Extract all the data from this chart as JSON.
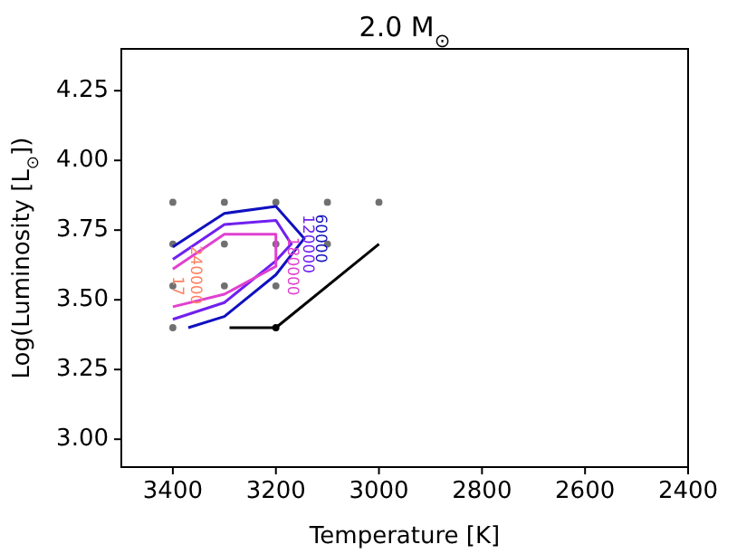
{
  "chart_data": {
    "type": "line",
    "title": "2.0 M$_{⊙}$",
    "xlabel": "Temperature [K]",
    "ylabel": "Log(Luminosity [L$_{⊙}$])",
    "xlim": [
      3500,
      2400
    ],
    "xticks": [
      3400,
      3200,
      3000,
      2800,
      2600,
      2400
    ],
    "ylim": [
      2.9,
      4.4
    ],
    "yticks": [
      {
        "value": 3.0,
        "label": "3.00"
      },
      {
        "value": 3.25,
        "label": "3.25"
      },
      {
        "value": 3.5,
        "label": "3.50"
      },
      {
        "value": 3.75,
        "label": "3.75"
      },
      {
        "value": 4.0,
        "label": "4.00"
      },
      {
        "value": 4.25,
        "label": "4.25"
      }
    ],
    "grid": false,
    "annotations": [
      "17",
      "240000"
    ],
    "series": [
      {
        "type": "scatter",
        "color": "#707070",
        "marker": "circle",
        "x": [
          3400,
          3300,
          3200,
          3100,
          3000,
          3400,
          3300,
          3200,
          3100,
          3400,
          3300,
          3200,
          3400
        ],
        "values": [
          3.85,
          3.85,
          3.85,
          3.85,
          3.85,
          3.7,
          3.7,
          3.7,
          3.7,
          3.55,
          3.55,
          3.55,
          3.4
        ]
      },
      {
        "name": "60000",
        "color": "#1010c0",
        "x": [
          3370,
          3300,
          3200,
          3145,
          3200,
          3300,
          3400
        ],
        "values": [
          3.4,
          3.44,
          3.59,
          3.72,
          3.835,
          3.81,
          3.69
        ]
      },
      {
        "name": "120000",
        "color": "#7020f0",
        "x": [
          3400,
          3300,
          3200,
          3170,
          3200,
          3300,
          3400
        ],
        "values": [
          3.43,
          3.49,
          3.64,
          3.7,
          3.785,
          3.77,
          3.645
        ]
      },
      {
        "name": "180000",
        "color": "#e040d0",
        "x": [
          3400,
          3300,
          3200,
          3200,
          3300,
          3400
        ],
        "values": [
          3.475,
          3.52,
          3.62,
          3.735,
          3.735,
          3.61
        ]
      },
      {
        "color": "#000000",
        "x": [
          3290,
          3200,
          3000
        ],
        "values": [
          3.4,
          3.4,
          3.7
        ]
      },
      {
        "type": "scatter",
        "color": "#000000",
        "marker": "circle",
        "x": [
          3200
        ],
        "values": [
          3.4
        ]
      }
    ]
  }
}
